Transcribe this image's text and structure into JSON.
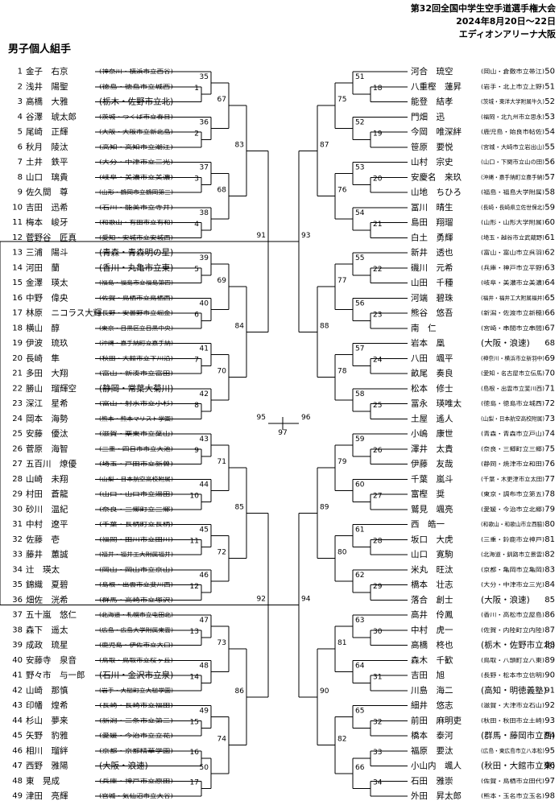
{
  "header": {
    "event": "第32回全国中学生空手道選手権大会",
    "date": "2024年8月20日～22日",
    "venue": "エディオンアリーナ大阪"
  },
  "section_title": "男子個人組手",
  "left_entries": [
    {
      "no": "1",
      "name": "金子　右京",
      "aff": "(神奈川・横浜市立西谷)"
    },
    {
      "no": "2",
      "name": "浅井　陽聖",
      "aff": "(徳島・徳島市立城西)"
    },
    {
      "no": "3",
      "name": "高橋　大雅",
      "aff": "(栃木・佐野市立北)"
    },
    {
      "no": "4",
      "name": "谷澤　琥太郎",
      "aff": "(茨城・つくば市立春日)"
    },
    {
      "no": "5",
      "name": "尾崎　正輝",
      "aff": "(大阪・大阪市立新北島)"
    },
    {
      "no": "6",
      "name": "秋月　陵汰",
      "aff": "(高知・高知市立潮江)"
    },
    {
      "no": "7",
      "name": "土井　鉄平",
      "aff": "(大分・中津市立三光)"
    },
    {
      "no": "8",
      "name": "山口　璃貴",
      "aff": "(岐阜・美濃市立美濃)"
    },
    {
      "no": "9",
      "name": "佐久間　尊",
      "aff": "(山形・鶴岡市立鶴岡第三)"
    },
    {
      "no": "10",
      "name": "吉田　迅希",
      "aff": "(石川・能美市立寺井)"
    },
    {
      "no": "11",
      "name": "梅本　峻牙",
      "aff": "(和歌山・有田市立有和)"
    },
    {
      "no": "12",
      "name": "菅野谷　匠真",
      "aff": "(愛知・安城市立安城西)"
    },
    {
      "no": "13",
      "name": "三浦　陽斗",
      "aff": "(青森・青森明の星)"
    },
    {
      "no": "14",
      "name": "河田　蘭",
      "aff": "(香川・丸亀市立東)"
    },
    {
      "no": "15",
      "name": "金澤　瑛太",
      "aff": "(福島・福島市立福島第四)"
    },
    {
      "no": "16",
      "name": "中野　偉央",
      "aff": "(佐賀・鳥栖市立鳥栖西)"
    },
    {
      "no": "17",
      "name": "林原　ニコラス大輝",
      "aff": "(長野・安曇野市立堀金)"
    },
    {
      "no": "18",
      "name": "横山　醇",
      "aff": "(東京・目黒区立目黒中央)"
    },
    {
      "no": "19",
      "name": "伊波　琉玖",
      "aff": "(沖縄・嘉手納町立嘉手納)"
    },
    {
      "no": "20",
      "name": "長崎　隼",
      "aff": "(秋田・大館市立下川沿)"
    },
    {
      "no": "21",
      "name": "多田　大翔",
      "aff": "(富山・新湊市立富田)"
    },
    {
      "no": "22",
      "name": "勝山　瑠輝空",
      "aff": "(静岡・常葉大菊川)"
    },
    {
      "no": "23",
      "name": "深江　星希",
      "aff": "(富山・射水市立小杉)"
    },
    {
      "no": "24",
      "name": "岡本　海勢",
      "aff": "(熊本・熊本マリスト学園)"
    },
    {
      "no": "25",
      "name": "安藤　優汰",
      "aff": "(滋賀・栗東市立葉山)"
    },
    {
      "no": "26",
      "name": "菅原　海智",
      "aff": "(三重・四日市市立大池)"
    },
    {
      "no": "27",
      "name": "五百川　燎優",
      "aff": "(埼玉・戸田市立新曽)"
    },
    {
      "no": "28",
      "name": "山崎　未翔",
      "aff": "(山梨・日本航空高校附属)"
    },
    {
      "no": "29",
      "name": "村田　蒼龍",
      "aff": "(山口・山口市立湯田)"
    },
    {
      "no": "30",
      "name": "砂川　温紀",
      "aff": "(奈良・三郷町立三郷)"
    },
    {
      "no": "31",
      "name": "中村　遼平",
      "aff": "(千葉・長柄町立長柄)"
    },
    {
      "no": "32",
      "name": "佐藤　壱",
      "aff": "(福岡・田川市立田川)"
    },
    {
      "no": "33",
      "name": "藤井　蕙誠",
      "aff": "(福井・福井工大附属福井)"
    },
    {
      "no": "34",
      "name": "辻　瑛太",
      "aff": "(岡山・岡山市立京山)"
    },
    {
      "no": "35",
      "name": "錦織　夏碧",
      "aff": "(島根・出雲市立斐川西)"
    },
    {
      "no": "36",
      "name": "畑佐　洸希",
      "aff": "(群馬・高崎市立塚沢)"
    },
    {
      "no": "37",
      "name": "五十嵐　悠仁",
      "aff": "(北海道・札幌市立屯田北)"
    },
    {
      "no": "38",
      "name": "森下　遥太",
      "aff": "(広島・広島大学附属東雲)"
    },
    {
      "no": "39",
      "name": "成政　琉星",
      "aff": "(鹿児島・伊佐市立大口)"
    },
    {
      "no": "40",
      "name": "安藤寺　泉音",
      "aff": "(鳥取・鳥取市立桜ヶ丘)"
    },
    {
      "no": "41",
      "name": "野々市　与一郎",
      "aff": "(石川・金沢市立泉)"
    },
    {
      "no": "42",
      "name": "山崎　那慎",
      "aff": "(岩手・大槌町立大槌学園)"
    },
    {
      "no": "43",
      "name": "印幡　煌希",
      "aff": "(長崎・長崎市立福田)"
    },
    {
      "no": "44",
      "name": "杉山　夢来",
      "aff": "(新潟・三条市立第二)"
    },
    {
      "no": "45",
      "name": "矢野　豹雅",
      "aff": "(愛媛・今治市立立花)"
    },
    {
      "no": "46",
      "name": "相川　瑠絆",
      "aff": "(京都・京都精華学園)"
    },
    {
      "no": "47",
      "name": "西野　雅陽",
      "aff": "(大阪・浪速)"
    },
    {
      "no": "48",
      "name": "東　晃成",
      "aff": "(兵庫・神戸市立原田)"
    },
    {
      "no": "49",
      "name": "津田　亮輝",
      "aff": "(宮城・気仙沼市立大谷)"
    }
  ],
  "right_entries": [
    {
      "no": "50",
      "name": "河合　琉空",
      "aff": "(岡山・倉敷市立帯江)"
    },
    {
      "no": "51",
      "name": "八重樫　蓮昇",
      "aff": "(岩手・北上市立上野)"
    },
    {
      "no": "52",
      "name": "能登　結孝",
      "aff": "(茨城・東洋大学附属牛久)"
    },
    {
      "no": "53",
      "name": "門畑　迅",
      "aff": "(福岡・北九州市立思永)"
    },
    {
      "no": "54",
      "name": "今岡　唯深絆",
      "aff": "(鹿児島・始良市帖佐)"
    },
    {
      "no": "55",
      "name": "笹原　要悦",
      "aff": "(宮城・大崎市立岩出山)"
    },
    {
      "no": "56",
      "name": "山村　宗史",
      "aff": "(山口・下関市立山の田)"
    },
    {
      "no": "57",
      "name": "安慶名　来玖",
      "aff": "(沖縄・嘉手納町立嘉手納)"
    },
    {
      "no": "58",
      "name": "山地　ちひろ",
      "aff": "(福島・福島大学附属)"
    },
    {
      "no": "59",
      "name": "冨川　晴生",
      "aff": "(長崎・長崎県立佐世保北)"
    },
    {
      "no": "60",
      "name": "島田　翔瑠",
      "aff": "(山形・山形大学附属)"
    },
    {
      "no": "61",
      "name": "白土　勇輝",
      "aff": "(埼玉・越谷市立武蔵野)"
    },
    {
      "no": "62",
      "name": "新井　透也",
      "aff": "(富山・富山市立呉羽)"
    },
    {
      "no": "63",
      "name": "磯川　元希",
      "aff": "(兵庫・神戸市立平野)"
    },
    {
      "no": "64",
      "name": "山田　千種",
      "aff": "(岐阜・美濃市立美濃)"
    },
    {
      "no": "65",
      "name": "河端　碧珠",
      "aff": "(福井・福井工大附属福井)"
    },
    {
      "no": "66",
      "name": "熊谷　悠吾",
      "aff": "(新潟・佐渡市立新穂)"
    },
    {
      "no": "67",
      "name": "南　仁",
      "aff": "(宮崎・串間市立串間)"
    },
    {
      "no": "68",
      "name": "岩本　凰",
      "aff": "(大阪・浪速)"
    },
    {
      "no": "69",
      "name": "八田　颯平",
      "aff": "(神奈川・横浜市立新羽中)"
    },
    {
      "no": "70",
      "name": "畝尾　奏良",
      "aff": "(愛知・名古屋市立伝馬)"
    },
    {
      "no": "71",
      "name": "松本　修士",
      "aff": "(島根・出雲市立斐川西)"
    },
    {
      "no": "72",
      "name": "冨永　瑛唯太",
      "aff": "(徳島・徳島市立城西)"
    },
    {
      "no": "73",
      "name": "土屋　遙人",
      "aff": "(山梨・日本航空高校附属)"
    },
    {
      "no": "74",
      "name": "小嶋　康世",
      "aff": "(青森・青森市立戸山)"
    },
    {
      "no": "75",
      "name": "澤井　太貴",
      "aff": "(奈良・三郷町立三郷)"
    },
    {
      "no": "76",
      "name": "伊藤　友哉",
      "aff": "(静岡・焼津市立和田)"
    },
    {
      "no": "77",
      "name": "千葉　嵐斗",
      "aff": "(千葉・木更津市立太田)"
    },
    {
      "no": "78",
      "name": "富樫　奨",
      "aff": "(東京・調布市立第五)"
    },
    {
      "no": "79",
      "name": "鷲見　颯亮",
      "aff": "(愛媛・今治市立北郷)"
    },
    {
      "no": "80",
      "name": "西　皓一",
      "aff": "(和歌山・和歌山市立西脇)"
    },
    {
      "no": "81",
      "name": "坂口　大虎",
      "aff": "(三重・鈴鹿市立神戸)"
    },
    {
      "no": "82",
      "name": "山口　寛駒",
      "aff": "(北海道・釧路市立景雲)"
    },
    {
      "no": "83",
      "name": "米丸　旺汰",
      "aff": "(京都・亀岡市立亀岡)"
    },
    {
      "no": "84",
      "name": "橋本　壮志",
      "aff": "(大分・中津市立三光)"
    },
    {
      "no": "85",
      "name": "落合　創士",
      "aff": "(大阪・浪速)"
    },
    {
      "no": "86",
      "name": "高井　伶鳳",
      "aff": "(香川・高松市立屋島)"
    },
    {
      "no": "87",
      "name": "中村　虎一",
      "aff": "(佐賀・内陸町立内陸)"
    },
    {
      "no": "88",
      "name": "高橋　柊也",
      "aff": "(栃木・佐野市立北)"
    },
    {
      "no": "89",
      "name": "森木　千歓",
      "aff": "(鳥取・八頭町立八東)"
    },
    {
      "no": "90",
      "name": "吉田　旭",
      "aff": "(長野・松本市立信明)"
    },
    {
      "no": "91",
      "name": "川島　海二",
      "aff": "(高知・明徳義塾)"
    },
    {
      "no": "92",
      "name": "細井　悠志",
      "aff": "(滋賀・大津市立石山)"
    },
    {
      "no": "93",
      "name": "前田　麻明吏",
      "aff": "(秋田・秋田市立土崎)"
    },
    {
      "no": "94",
      "name": "橋本　泰河",
      "aff": "(群馬・藤岡市立西)"
    },
    {
      "no": "95",
      "name": "福原　要汰",
      "aff": "(広島・東広島市立八本松)"
    },
    {
      "no": "96",
      "name": "小山内　颯人",
      "aff": "(秋田・大館市立東)"
    },
    {
      "no": "97",
      "name": "石田　雅崇",
      "aff": "(佐賀・鳥栖市立田代)"
    },
    {
      "no": "98",
      "name": "外田　昇太郎",
      "aff": "(熊本・玉名市立玉名)"
    }
  ],
  "left_matches": {
    "1": "1",
    "2": "2",
    "3": "3",
    "4": "4",
    "5": "5",
    "6": "6",
    "7": "7",
    "8": "8",
    "9": "9",
    "10": "10",
    "11": "11",
    "12": "12",
    "13": "13",
    "14": "14",
    "15": "15",
    "16": "16",
    "17": "17",
    "35": "35",
    "36": "36",
    "37": "37",
    "38": "38",
    "39": "39",
    "40": "40",
    "41": "41",
    "42": "42",
    "43": "43",
    "44": "44",
    "45": "45",
    "46": "46",
    "47": "47",
    "48": "48",
    "49": "49",
    "50": "50",
    "67": "67",
    "68": "68",
    "69": "69",
    "70": "70",
    "71": "71",
    "72": "72",
    "73": "73",
    "74": "74",
    "83": "83",
    "84": "84",
    "85": "85",
    "86": "86",
    "91": "91",
    "92": "92",
    "95": "95"
  },
  "right_matches": {
    "18": "18",
    "19": "19",
    "20": "20",
    "21": "21",
    "22": "22",
    "23": "23",
    "24": "24",
    "25": "25",
    "26": "26",
    "27": "27",
    "28": "28",
    "29": "29",
    "30": "30",
    "31": "31",
    "32": "32",
    "33": "33",
    "34": "34",
    "51": "51",
    "52": "52",
    "53": "53",
    "54": "54",
    "55": "55",
    "56": "56",
    "57": "57",
    "58": "58",
    "59": "59",
    "60": "60",
    "61": "61",
    "62": "62",
    "63": "63",
    "64": "64",
    "65": "65",
    "66": "66",
    "75": "75",
    "76": "76",
    "77": "77",
    "78": "78",
    "79": "79",
    "80": "80",
    "81": "81",
    "82": "82",
    "87": "87",
    "88": "88",
    "89": "89",
    "90": "90",
    "93": "93",
    "94": "94",
    "96": "96"
  },
  "final_match": "97"
}
